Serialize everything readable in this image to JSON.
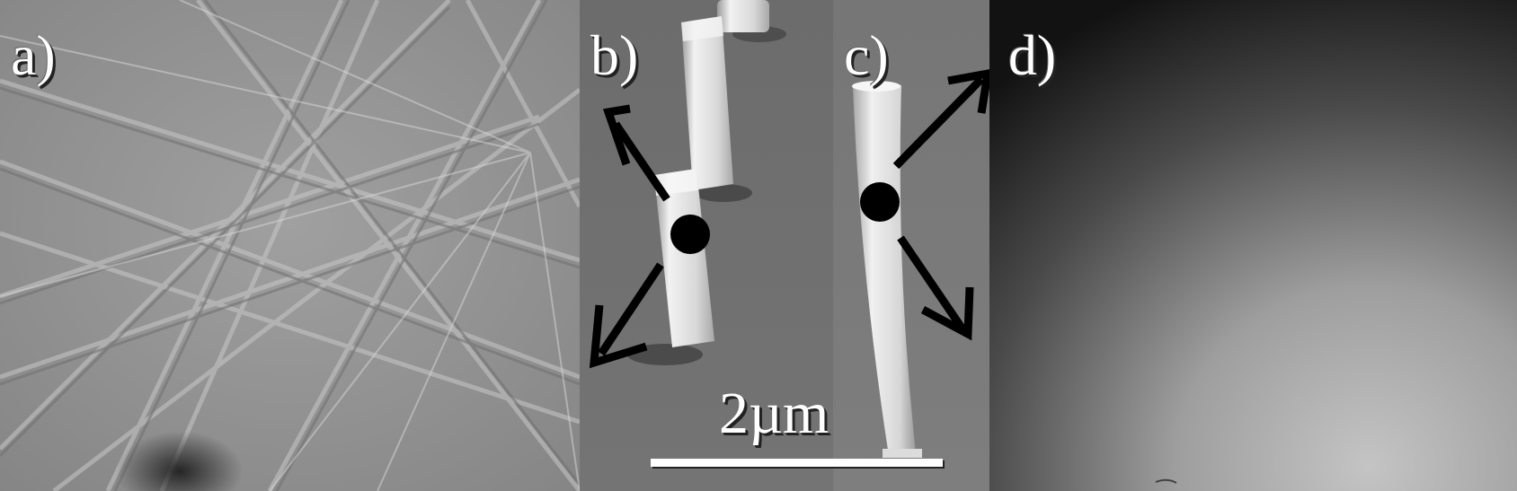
{
  "figure": {
    "panels": [
      {
        "id": "a",
        "label": "a)",
        "content": "kikuchi-pattern"
      },
      {
        "id": "b",
        "label": "b)",
        "content": "sem-pillar-tilted"
      },
      {
        "id": "c",
        "label": "c)",
        "content": "sem-pillar-bent"
      },
      {
        "id": "d",
        "label": "d)",
        "content": "diffuse-pattern"
      }
    ],
    "scale_bar": {
      "label": "2µm"
    },
    "colors": {
      "label_text": "#ffffff",
      "label_shadow": "#222222",
      "arrow": "#000000",
      "kikuchi_bg": "#8e8e8e",
      "sem_bg": "#6f6f6f",
      "diffuse_dark": "#101010",
      "diffuse_light": "#bdbdbd"
    }
  }
}
